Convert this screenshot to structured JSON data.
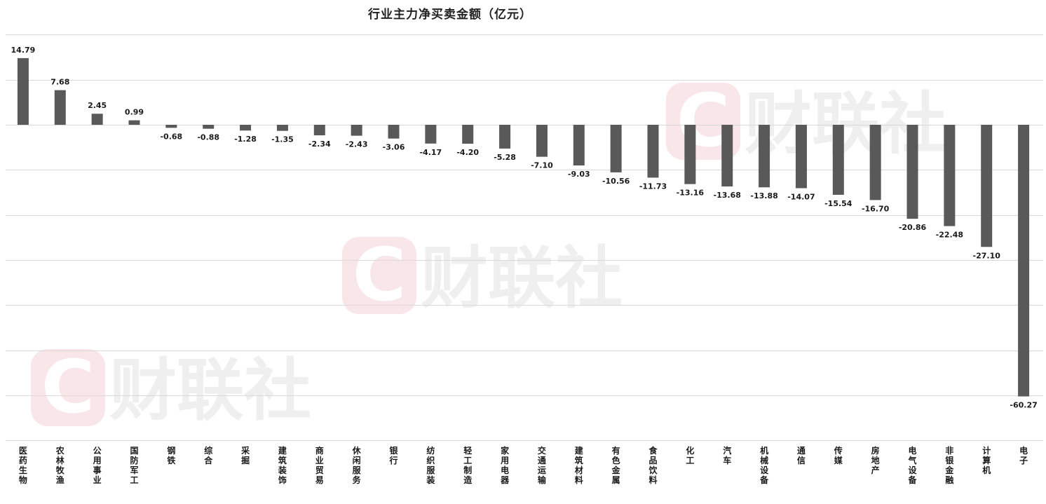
{
  "chart_data": {
    "type": "bar",
    "title": "行业主力净买卖金额（亿元）",
    "xlabel": "",
    "ylabel": "",
    "ylim": [
      -70,
      20
    ],
    "grid": true,
    "legend": "none",
    "categories": [
      "医药生物",
      "农林牧渔",
      "公用事业",
      "国防军工",
      "钢铁",
      "综合",
      "采掘",
      "建筑装饰",
      "商业贸易",
      "休闲服务",
      "银行",
      "纺织服装",
      "轻工制造",
      "家用电器",
      "交通运输",
      "建筑材料",
      "有色金属",
      "食品饮料",
      "化工",
      "汽车",
      "机械设备",
      "通信",
      "传媒",
      "房地产",
      "电气设备",
      "非银金融",
      "计算机",
      "电子"
    ],
    "values": [
      14.79,
      7.68,
      2.45,
      0.99,
      -0.68,
      -0.88,
      -1.28,
      -1.35,
      -2.34,
      -2.43,
      -3.06,
      -4.17,
      -4.2,
      -5.28,
      -7.1,
      -9.03,
      -10.56,
      -11.73,
      -13.16,
      -13.68,
      -13.88,
      -14.07,
      -15.54,
      -16.7,
      -20.86,
      -22.48,
      -27.1,
      -60.27
    ],
    "data_labels": [
      "14.79",
      "7.68",
      "2.45",
      "0.99",
      "-0.68",
      "-0.88",
      "-1.28",
      "-1.35",
      "-2.34",
      "-2.43",
      "-3.06",
      "-4.17",
      "-4.20",
      "-5.28",
      "-7.10",
      "-9.03",
      "-10.56",
      "-11.73",
      "-13.16",
      "-13.68",
      "-13.88",
      "-14.07",
      "-15.54",
      "-16.70",
      "-20.86",
      "-22.48",
      "-27.10",
      "-60.27"
    ]
  },
  "colors": {
    "bar": "#595959",
    "grid": "#d9d9d9",
    "label": "#1a1a1a",
    "watermark_logo": "#f9e6e8",
    "watermark_text": "#efefef"
  },
  "watermark": {
    "brand_text": "财联社",
    "logo_letter": "C"
  }
}
